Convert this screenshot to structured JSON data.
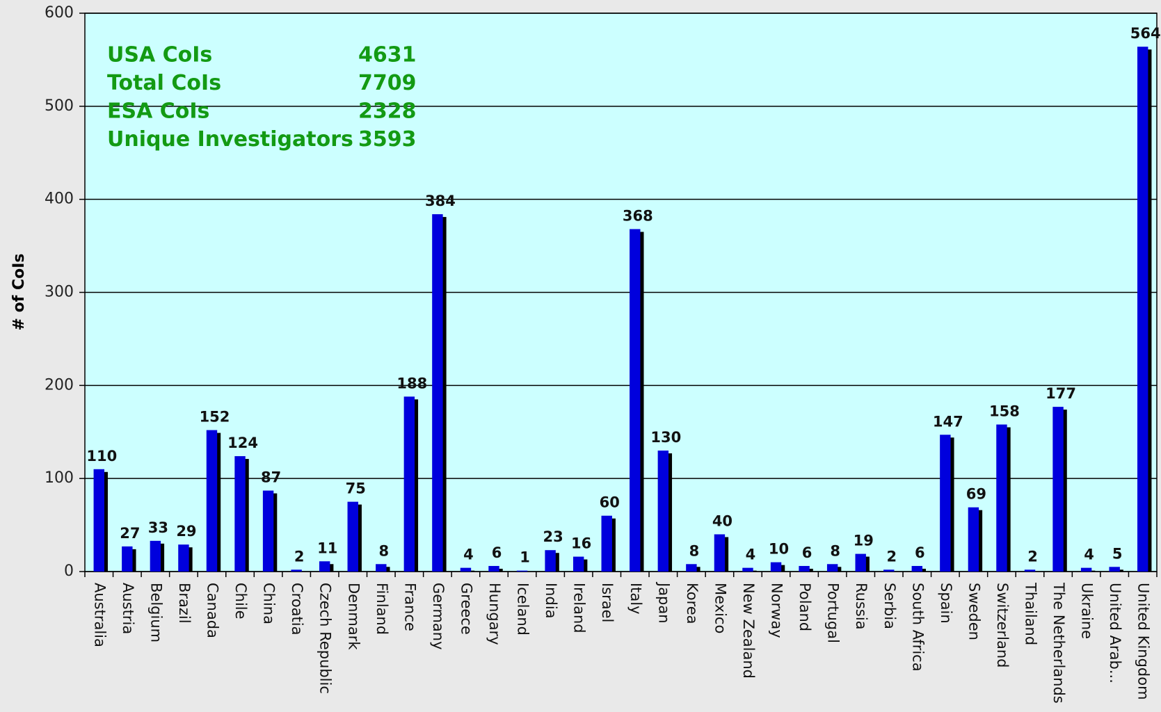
{
  "chart_data": {
    "type": "bar",
    "y_label": "# of CoIs",
    "categories": [
      "Australia",
      "Austria",
      "Belgium",
      "Brazil",
      "Canada",
      "Chile",
      "China",
      "Croatia",
      "Czech Republic",
      "Denmark",
      "Finland",
      "France",
      "Germany",
      "Greece",
      "Hungary",
      "Iceland",
      "India",
      "Ireland",
      "Israel",
      "Italy",
      "Japan",
      "Korea",
      "Mexico",
      "New Zealand",
      "Norway",
      "Poland",
      "Portugal",
      "Russia",
      "Serbia",
      "South Africa",
      "Spain",
      "Sweden",
      "Switzerland",
      "Thailand",
      "The Netherlands",
      "Ukraine",
      "United Arab...",
      "United Kingdom"
    ],
    "values": [
      110,
      27,
      33,
      29,
      152,
      124,
      87,
      2,
      11,
      75,
      8,
      188,
      384,
      4,
      6,
      1,
      23,
      16,
      60,
      368,
      130,
      8,
      40,
      4,
      10,
      6,
      8,
      19,
      2,
      6,
      147,
      69,
      158,
      2,
      177,
      4,
      5,
      564
    ],
    "color": "#0000dd",
    "ylim": [
      0,
      600
    ],
    "yticks": [
      0,
      100,
      200,
      300,
      400,
      500,
      600
    ],
    "grid": true,
    "annotations": [
      {
        "label": "USA CoIs",
        "value": "4631"
      },
      {
        "label": "Total CoIs",
        "value": "7709"
      },
      {
        "label": "ESA CoIs",
        "value": "2328"
      },
      {
        "label": "Unique Investigators",
        "value": "3593"
      }
    ]
  }
}
